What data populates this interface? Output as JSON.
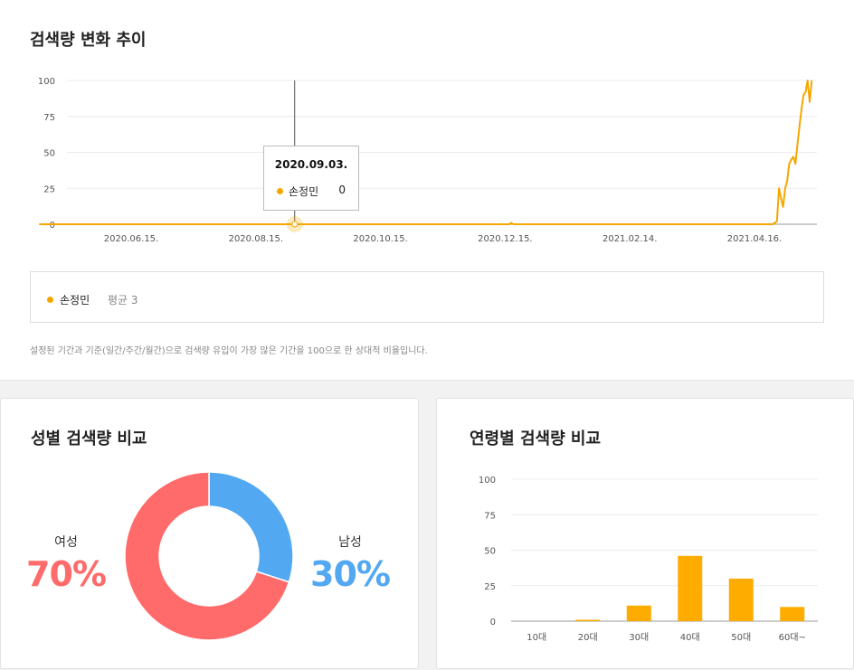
{
  "trend": {
    "title": "검색량 변화 추이",
    "tooltip": {
      "date": "2020.09.03.",
      "series_name": "손정민",
      "value": "0"
    },
    "legend": {
      "name": "손정민",
      "avg_label": "평균 3"
    },
    "note": "설정된 기간과 기준(일간/주간/월간)으로 검색량 유입이 가장 많은 기간을 100으로 한 상대적 비율입니다."
  },
  "gender": {
    "title": "성별 검색량 비교",
    "female_label": "여성",
    "female_pct": "70%",
    "male_label": "남성",
    "male_pct": "30%"
  },
  "age": {
    "title": "연령별 검색량 비교"
  },
  "colors": {
    "trend_line": "#f5a700",
    "female": "#ff6b6b",
    "male": "#53a8f2",
    "bar": "#ffac00"
  },
  "chart_data": [
    {
      "type": "line",
      "title": "검색량 변화 추이",
      "x_ticks": [
        "2020.06.15.",
        "2020.08.15.",
        "2020.10.15.",
        "2020.12.15.",
        "2021.02.14.",
        "2021.04.16."
      ],
      "y_ticks": [
        0,
        25,
        50,
        75,
        100
      ],
      "ylim": [
        0,
        100
      ],
      "grid": true,
      "series": [
        {
          "name": "손정민",
          "points": [
            [
              "2020.05.01.",
              0
            ],
            [
              "2020.09.03.",
              0
            ],
            [
              "2020.12.17.",
              0
            ],
            [
              "2020.12.18.",
              1
            ],
            [
              "2020.12.19.",
              0
            ],
            [
              "2021.04.25.",
              0
            ],
            [
              "2021.04.27.",
              2
            ],
            [
              "2021.04.28.",
              25
            ],
            [
              "2021.04.29.",
              18
            ],
            [
              "2021.04.30.",
              12
            ],
            [
              "2021.05.01.",
              25
            ],
            [
              "2021.05.02.",
              30
            ],
            [
              "2021.05.03.",
              42
            ],
            [
              "2021.05.04.",
              45
            ],
            [
              "2021.05.05.",
              47
            ],
            [
              "2021.05.06.",
              42
            ],
            [
              "2021.05.07.",
              55
            ],
            [
              "2021.05.08.",
              68
            ],
            [
              "2021.05.09.",
              80
            ],
            [
              "2021.05.10.",
              90
            ],
            [
              "2021.05.11.",
              92
            ],
            [
              "2021.05.12.",
              100
            ],
            [
              "2021.05.13.",
              85
            ],
            [
              "2021.05.14.",
              100
            ]
          ]
        }
      ]
    },
    {
      "type": "pie",
      "title": "성별 검색량 비교",
      "slices": [
        {
          "name": "남성",
          "value": 30
        },
        {
          "name": "여성",
          "value": 70
        }
      ]
    },
    {
      "type": "bar",
      "title": "연령별 검색량 비교",
      "categories": [
        "10대",
        "20대",
        "30대",
        "40대",
        "50대",
        "60대~"
      ],
      "values": [
        0,
        1,
        11,
        46,
        30,
        10
      ],
      "y_ticks": [
        0,
        25,
        50,
        75,
        100
      ],
      "ylim": [
        0,
        100
      ],
      "grid": true
    }
  ]
}
